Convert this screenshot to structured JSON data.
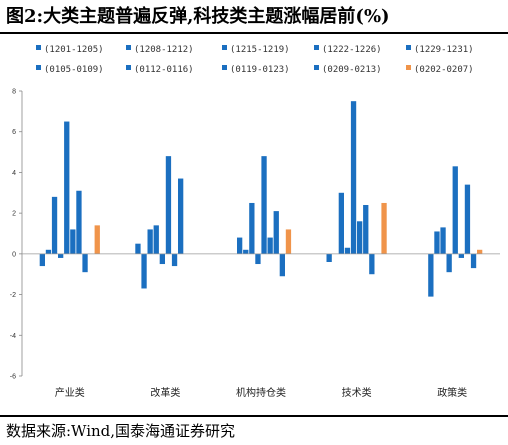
{
  "title": "图2:大类主题普遍反弹,科技类主题涨幅居前(%)",
  "source": "数据来源:Wind,国泰海通证券研究",
  "colors": {
    "primary": "#1B6FC0",
    "highlight": "#F0944A"
  },
  "chart_data": {
    "type": "bar",
    "title": "图2:大类主题普遍反弹,科技类主题涨幅居前(%)",
    "xlabel": "",
    "ylabel": "",
    "ylim": [
      -6,
      8
    ],
    "yticks": [
      -6,
      -4,
      -2,
      0,
      2,
      4,
      6,
      8
    ],
    "grid": false,
    "legend_position": "top",
    "categories": [
      "产业类",
      "改革类",
      "机构持仓类",
      "技术类",
      "政策类"
    ],
    "series": [
      {
        "name": "(1201-1205)",
        "color": "#1B6FC0",
        "values": [
          -0.6,
          0.5,
          0.0,
          -0.4,
          0.0
        ]
      },
      {
        "name": "(1208-1212)",
        "color": "#1B6FC0",
        "values": [
          0.2,
          -1.7,
          0.8,
          0.0,
          -2.1
        ]
      },
      {
        "name": "(1215-1219)",
        "color": "#1B6FC0",
        "values": [
          2.8,
          1.2,
          0.2,
          3.0,
          1.1
        ]
      },
      {
        "name": "(1222-1226)",
        "color": "#1B6FC0",
        "values": [
          -0.2,
          1.4,
          2.5,
          0.3,
          1.3
        ]
      },
      {
        "name": "(1229-1231)",
        "color": "#1B6FC0",
        "values": [
          6.5,
          -0.5,
          -0.5,
          7.5,
          -0.9
        ]
      },
      {
        "name": "(0105-0109)",
        "color": "#1B6FC0",
        "values": [
          1.2,
          4.8,
          4.8,
          1.6,
          4.3
        ]
      },
      {
        "name": "(0112-0116)",
        "color": "#1B6FC0",
        "values": [
          3.1,
          -0.6,
          0.8,
          2.4,
          -0.2
        ]
      },
      {
        "name": "(0119-0123)",
        "color": "#1B6FC0",
        "values": [
          -0.9,
          3.7,
          2.1,
          -1.0,
          3.4
        ]
      },
      {
        "name": "(0209-0213)",
        "color": "#1B6FC0",
        "values": [
          0.0,
          0.0,
          -1.1,
          0.0,
          -0.7
        ]
      },
      {
        "name": "(0202-0207)",
        "color": "#F0944A",
        "values": [
          1.4,
          0.0,
          1.2,
          2.5,
          0.2
        ]
      }
    ]
  }
}
